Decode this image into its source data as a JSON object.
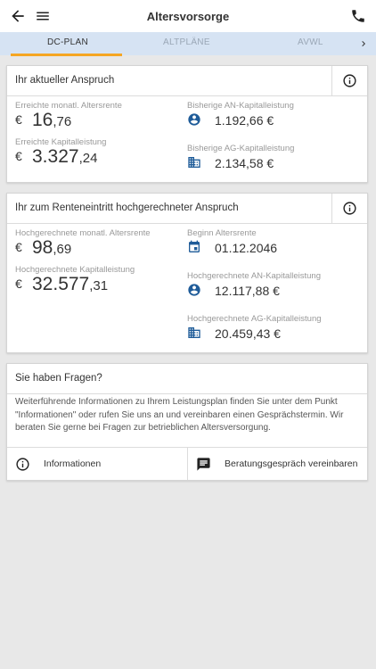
{
  "app": {
    "title": "Altersvorsorge"
  },
  "tabs": [
    {
      "label": "DC-PLAN"
    },
    {
      "label": "ALTPLÄNE"
    },
    {
      "label": "AVWL"
    }
  ],
  "current": {
    "title": "Ihr aktueller Anspruch",
    "rente_label": "Erreichte monatl. Altersrente",
    "rente_currency": "€",
    "rente_main": "16",
    "rente_cents": ",76",
    "kapital_label": "Erreichte Kapitalleistung",
    "kapital_currency": "€",
    "kapital_main": "3.327",
    "kapital_cents": ",24",
    "an_label": "Bisherige AN-Kapitalleistung",
    "an_value": "1.192,66 €",
    "ag_label": "Bisherige AG-Kapitalleistung",
    "ag_value": "2.134,58 €"
  },
  "projected": {
    "title": "Ihr zum Renteneintritt hochgerechneter Anspruch",
    "rente_label": "Hochgerechnete monatl. Altersrente",
    "rente_currency": "€",
    "rente_main": "98",
    "rente_cents": ",69",
    "kapital_label": "Hochgerechnete Kapitalleistung",
    "kapital_currency": "€",
    "kapital_main": "32.577",
    "kapital_cents": ",31",
    "beginn_label": "Beginn Altersrente",
    "beginn_value": "01.12.2046",
    "an_label": "Hochgerechnete AN-Kapitalleistung",
    "an_value": "12.117,88 €",
    "ag_label": "Hochgerechnete AG-Kapitalleistung",
    "ag_value": "20.459,43 €"
  },
  "questions": {
    "title": "Sie haben Fragen?",
    "text": "Weiterführende Informationen zu Ihrem Leistungsplan finden Sie unter dem Punkt \"Informationen\" oder rufen Sie uns an und vereinbaren einen Gesprächstermin. Wir beraten Sie gerne bei Fragen zur betrieblichen Altersversorgung.",
    "info_button": "Informationen",
    "consult_button": "Beratungsgespräch vereinbaren"
  },
  "colors": {
    "accent": "#f5a623",
    "tab_bar": "#d6e3f3",
    "icon_blue": "#1f5c99"
  },
  "icons": [
    "back-arrow-icon",
    "menu-icon",
    "phone-icon",
    "chevron-right-icon",
    "info-icon",
    "person-icon",
    "building-icon",
    "calendar-icon",
    "chat-icon"
  ]
}
